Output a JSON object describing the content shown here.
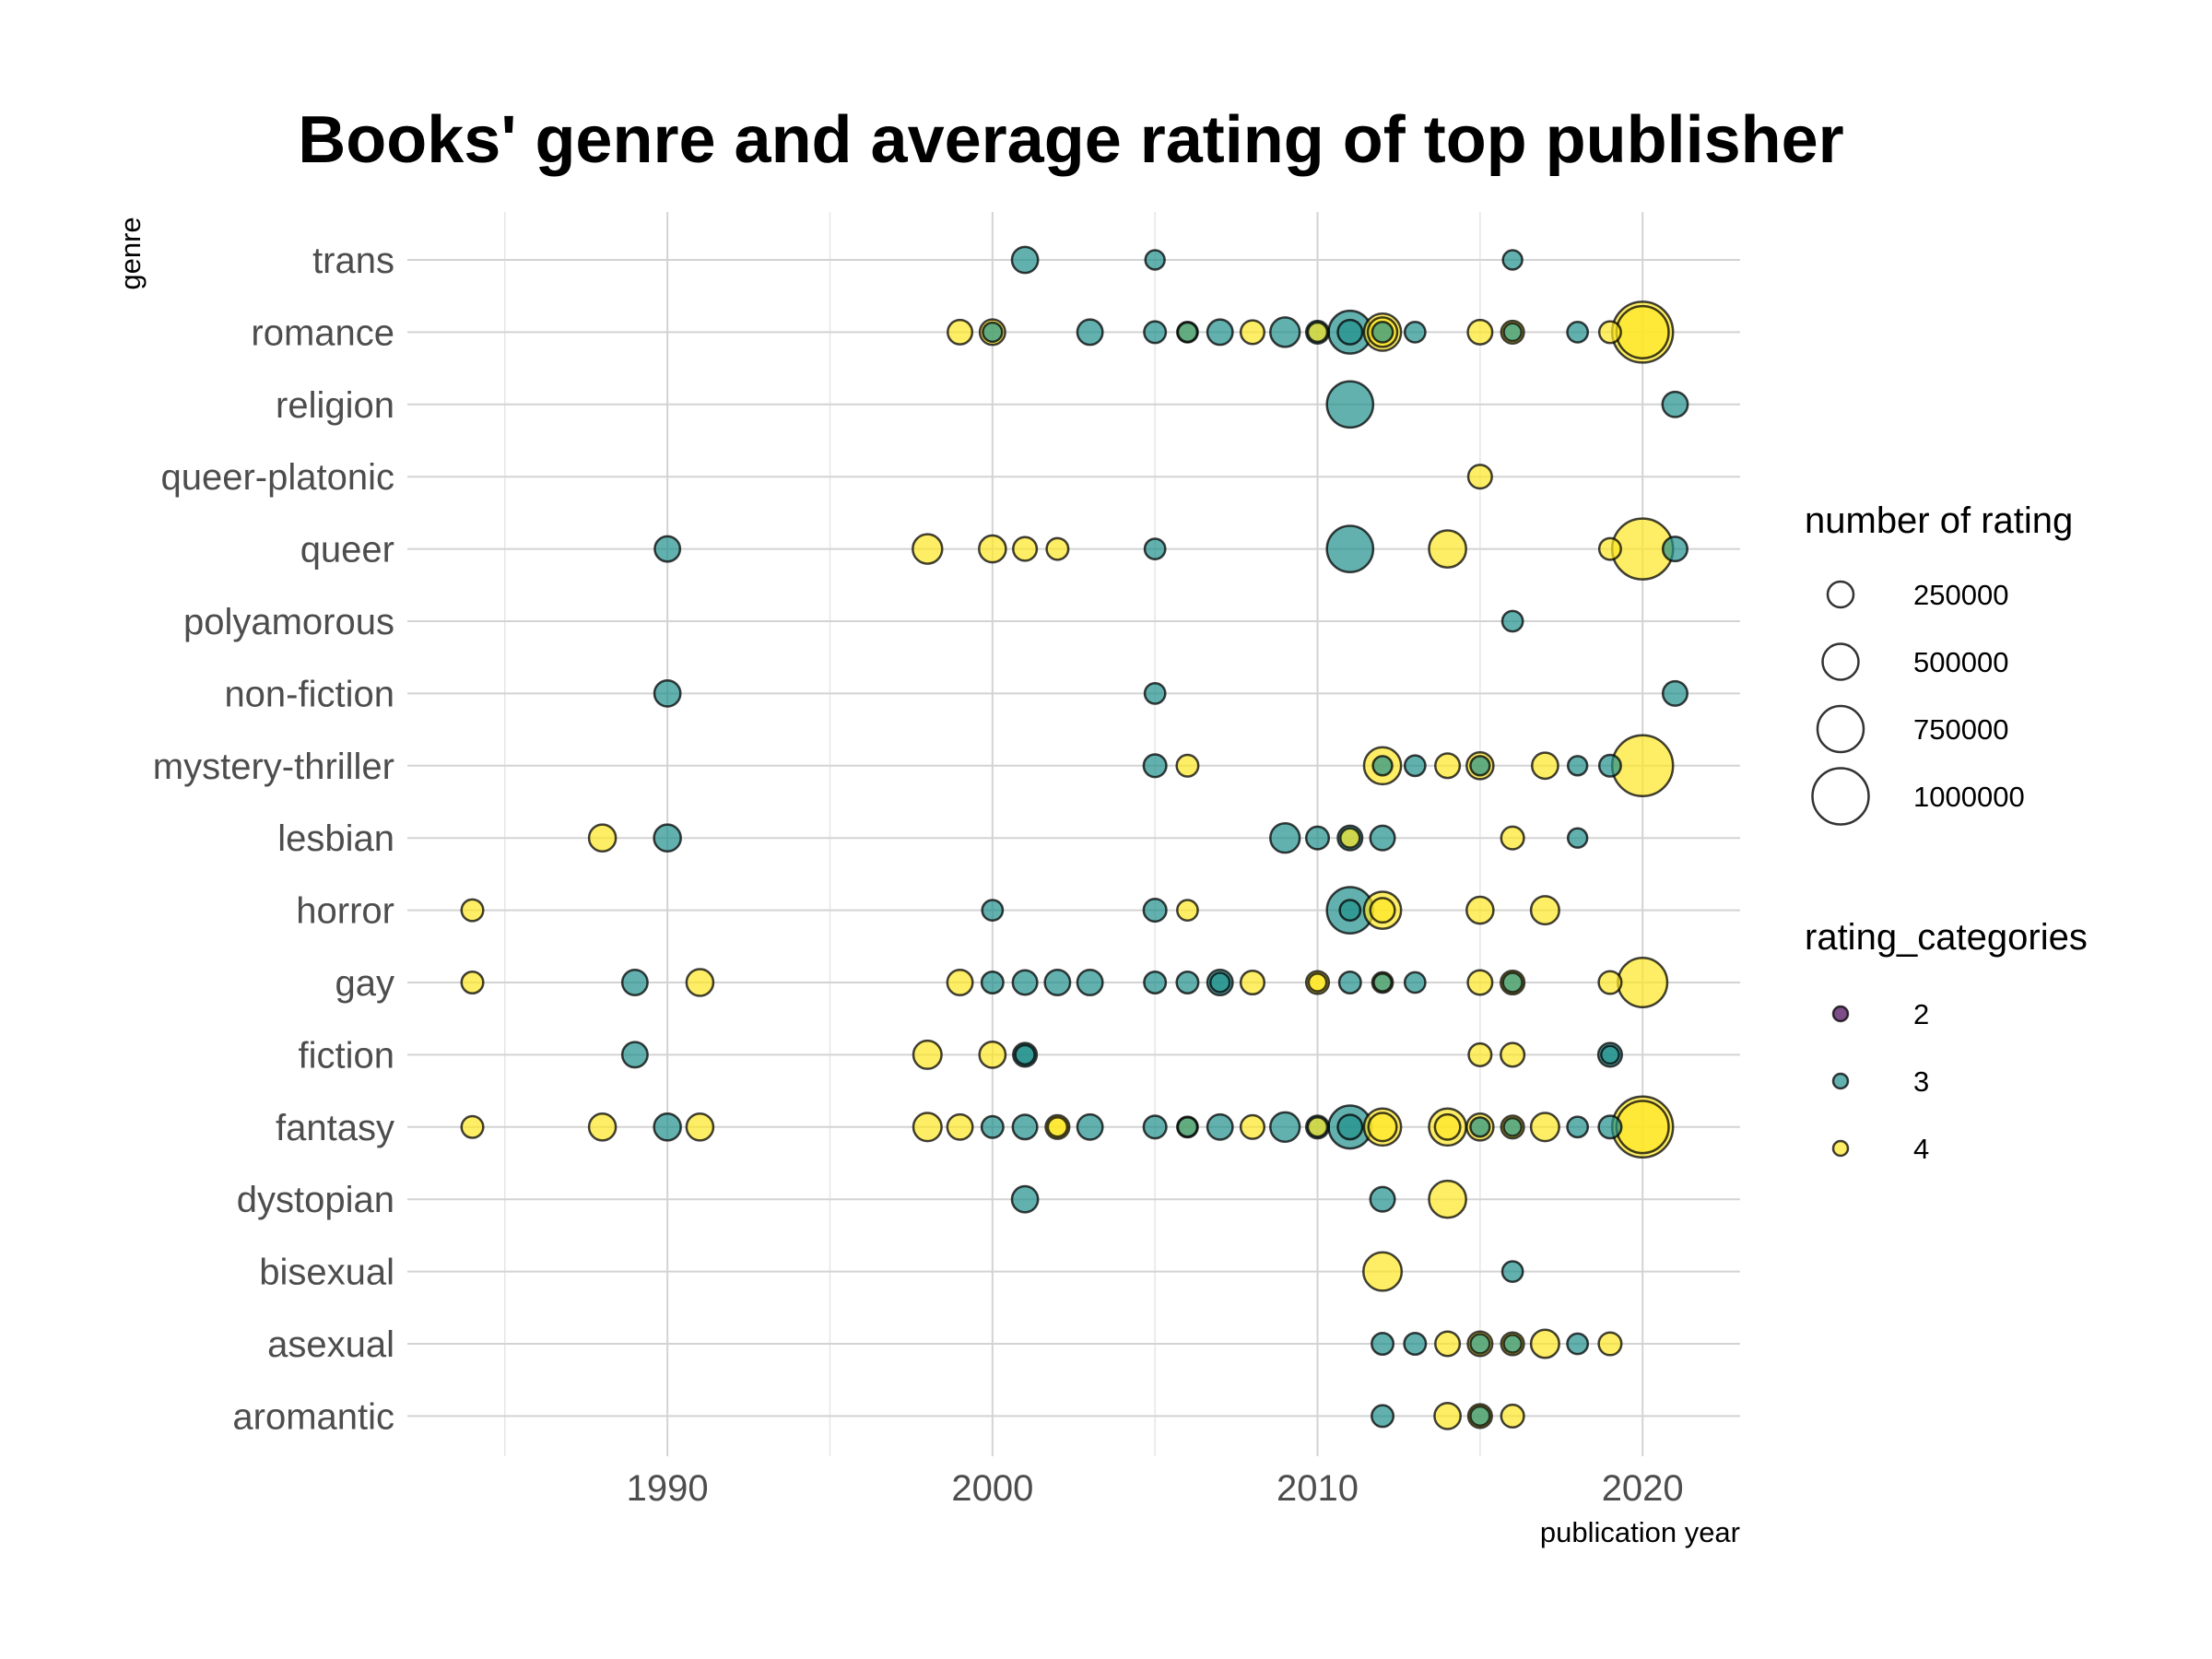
{
  "chart_data": {
    "type": "scatter",
    "title": "Books' genre and average rating of top publisher",
    "xlabel": "publication year",
    "ylabel": "genre",
    "xlim": [
      1982,
      2023
    ],
    "x_ticks": [
      1990,
      2000,
      2010,
      2020
    ],
    "grid": true,
    "categories": [
      "aromantic",
      "asexual",
      "bisexual",
      "dystopian",
      "fantasy",
      "fiction",
      "gay",
      "horror",
      "lesbian",
      "mystery-thriller",
      "non-fiction",
      "polyamorous",
      "queer",
      "queer-platonic",
      "religion",
      "romance",
      "trans"
    ],
    "colors": {
      "2": "#440154",
      "3": "#21908C",
      "4": "#FDE725"
    },
    "legends": {
      "size": {
        "title": "number of rating",
        "values": [
          250000,
          500000,
          750000,
          1000000
        ],
        "labels": [
          "250000",
          "500000",
          "750000",
          "1000000"
        ]
      },
      "color": {
        "title": "rating_categories",
        "values": [
          "2",
          "3",
          "4"
        ]
      }
    },
    "points": [
      {
        "genre": "trans",
        "year": 2001,
        "cat": "3",
        "n": 100000
      },
      {
        "genre": "trans",
        "year": 2005,
        "cat": "3",
        "n": 30000
      },
      {
        "genre": "trans",
        "year": 2016,
        "cat": "3",
        "n": 30000
      },
      {
        "genre": "romance",
        "year": 1999,
        "cat": "4",
        "n": 80000
      },
      {
        "genre": "romance",
        "year": 2000,
        "cat": "4",
        "n": 90000
      },
      {
        "genre": "romance",
        "year": 2000,
        "cat": "3",
        "n": 30000
      },
      {
        "genre": "romance",
        "year": 2003,
        "cat": "3",
        "n": 90000
      },
      {
        "genre": "romance",
        "year": 2005,
        "cat": "3",
        "n": 50000
      },
      {
        "genre": "romance",
        "year": 2006,
        "cat": "4",
        "n": 40000
      },
      {
        "genre": "romance",
        "year": 2006,
        "cat": "3",
        "n": 30000
      },
      {
        "genre": "romance",
        "year": 2007,
        "cat": "3",
        "n": 90000
      },
      {
        "genre": "romance",
        "year": 2008,
        "cat": "4",
        "n": 70000
      },
      {
        "genre": "romance",
        "year": 2009,
        "cat": "3",
        "n": 150000
      },
      {
        "genre": "romance",
        "year": 2010,
        "cat": "3",
        "n": 60000
      },
      {
        "genre": "romance",
        "year": 2010,
        "cat": "4",
        "n": 30000
      },
      {
        "genre": "romance",
        "year": 2011,
        "cat": "3",
        "n": 450000
      },
      {
        "genre": "romance",
        "year": 2011,
        "cat": "3",
        "n": 80000
      },
      {
        "genre": "romance",
        "year": 2012,
        "cat": "4",
        "n": 300000
      },
      {
        "genre": "romance",
        "year": 2012,
        "cat": "4",
        "n": 150000
      },
      {
        "genre": "romance",
        "year": 2012,
        "cat": "3",
        "n": 40000
      },
      {
        "genre": "romance",
        "year": 2013,
        "cat": "3",
        "n": 40000
      },
      {
        "genre": "romance",
        "year": 2015,
        "cat": "4",
        "n": 80000
      },
      {
        "genre": "romance",
        "year": 2016,
        "cat": "4",
        "n": 60000
      },
      {
        "genre": "romance",
        "year": 2016,
        "cat": "3",
        "n": 20000
      },
      {
        "genre": "romance",
        "year": 2018,
        "cat": "3",
        "n": 40000
      },
      {
        "genre": "romance",
        "year": 2019,
        "cat": "4",
        "n": 50000
      },
      {
        "genre": "romance",
        "year": 2020,
        "cat": "4",
        "n": 1100000
      },
      {
        "genre": "romance",
        "year": 2020,
        "cat": "4",
        "n": 750000
      },
      {
        "genre": "religion",
        "year": 2011,
        "cat": "3",
        "n": 550000
      },
      {
        "genre": "religion",
        "year": 2021,
        "cat": "3",
        "n": 90000
      },
      {
        "genre": "queer-platonic",
        "year": 2015,
        "cat": "4",
        "n": 70000
      },
      {
        "genre": "queer",
        "year": 1990,
        "cat": "3",
        "n": 90000
      },
      {
        "genre": "queer",
        "year": 1998,
        "cat": "4",
        "n": 150000
      },
      {
        "genre": "queer",
        "year": 2000,
        "cat": "4",
        "n": 110000
      },
      {
        "genre": "queer",
        "year": 2001,
        "cat": "4",
        "n": 70000
      },
      {
        "genre": "queer",
        "year": 2002,
        "cat": "4",
        "n": 50000
      },
      {
        "genre": "queer",
        "year": 2005,
        "cat": "3",
        "n": 40000
      },
      {
        "genre": "queer",
        "year": 2011,
        "cat": "3",
        "n": 550000
      },
      {
        "genre": "queer",
        "year": 2014,
        "cat": "4",
        "n": 300000
      },
      {
        "genre": "queer",
        "year": 2019,
        "cat": "4",
        "n": 50000
      },
      {
        "genre": "queer",
        "year": 2020,
        "cat": "4",
        "n": 1100000
      },
      {
        "genre": "queer",
        "year": 2021,
        "cat": "3",
        "n": 80000
      },
      {
        "genre": "polyamorous",
        "year": 2016,
        "cat": "3",
        "n": 40000
      },
      {
        "genre": "non-fiction",
        "year": 1990,
        "cat": "3",
        "n": 100000
      },
      {
        "genre": "non-fiction",
        "year": 2005,
        "cat": "3",
        "n": 40000
      },
      {
        "genre": "non-fiction",
        "year": 2021,
        "cat": "3",
        "n": 80000
      },
      {
        "genre": "mystery-thriller",
        "year": 2005,
        "cat": "3",
        "n": 60000
      },
      {
        "genre": "mystery-thriller",
        "year": 2006,
        "cat": "4",
        "n": 50000
      },
      {
        "genre": "mystery-thriller",
        "year": 2012,
        "cat": "4",
        "n": 300000
      },
      {
        "genre": "mystery-thriller",
        "year": 2012,
        "cat": "3",
        "n": 30000
      },
      {
        "genre": "mystery-thriller",
        "year": 2013,
        "cat": "3",
        "n": 40000
      },
      {
        "genre": "mystery-thriller",
        "year": 2014,
        "cat": "4",
        "n": 80000
      },
      {
        "genre": "mystery-thriller",
        "year": 2015,
        "cat": "4",
        "n": 110000
      },
      {
        "genre": "mystery-thriller",
        "year": 2015,
        "cat": "3",
        "n": 30000
      },
      {
        "genre": "mystery-thriller",
        "year": 2017,
        "cat": "4",
        "n": 100000
      },
      {
        "genre": "mystery-thriller",
        "year": 2018,
        "cat": "3",
        "n": 30000
      },
      {
        "genre": "mystery-thriller",
        "year": 2019,
        "cat": "3",
        "n": 50000
      },
      {
        "genre": "mystery-thriller",
        "year": 2020,
        "cat": "4",
        "n": 1100000
      },
      {
        "genre": "lesbian",
        "year": 1988,
        "cat": "4",
        "n": 110000
      },
      {
        "genre": "lesbian",
        "year": 1990,
        "cat": "3",
        "n": 110000
      },
      {
        "genre": "lesbian",
        "year": 2009,
        "cat": "3",
        "n": 150000
      },
      {
        "genre": "lesbian",
        "year": 2010,
        "cat": "3",
        "n": 60000
      },
      {
        "genre": "lesbian",
        "year": 2011,
        "cat": "3",
        "n": 80000
      },
      {
        "genre": "lesbian",
        "year": 2011,
        "cat": "4",
        "n": 30000
      },
      {
        "genre": "lesbian",
        "year": 2012,
        "cat": "3",
        "n": 80000
      },
      {
        "genre": "lesbian",
        "year": 2016,
        "cat": "4",
        "n": 60000
      },
      {
        "genre": "lesbian",
        "year": 2018,
        "cat": "3",
        "n": 30000
      },
      {
        "genre": "horror",
        "year": 1984,
        "cat": "4",
        "n": 50000
      },
      {
        "genre": "horror",
        "year": 2000,
        "cat": "3",
        "n": 40000
      },
      {
        "genre": "horror",
        "year": 2005,
        "cat": "3",
        "n": 60000
      },
      {
        "genre": "horror",
        "year": 2006,
        "cat": "4",
        "n": 40000
      },
      {
        "genre": "horror",
        "year": 2011,
        "cat": "3",
        "n": 550000
      },
      {
        "genre": "horror",
        "year": 2011,
        "cat": "3",
        "n": 40000
      },
      {
        "genre": "horror",
        "year": 2012,
        "cat": "4",
        "n": 300000
      },
      {
        "genre": "horror",
        "year": 2012,
        "cat": "4",
        "n": 80000
      },
      {
        "genre": "horror",
        "year": 2015,
        "cat": "4",
        "n": 110000
      },
      {
        "genre": "horror",
        "year": 2017,
        "cat": "4",
        "n": 130000
      },
      {
        "genre": "gay",
        "year": 1984,
        "cat": "4",
        "n": 50000
      },
      {
        "genre": "gay",
        "year": 1989,
        "cat": "3",
        "n": 90000
      },
      {
        "genre": "gay",
        "year": 1991,
        "cat": "4",
        "n": 110000
      },
      {
        "genre": "gay",
        "year": 1999,
        "cat": "4",
        "n": 90000
      },
      {
        "genre": "gay",
        "year": 2000,
        "cat": "3",
        "n": 50000
      },
      {
        "genre": "gay",
        "year": 2001,
        "cat": "3",
        "n": 80000
      },
      {
        "genre": "gay",
        "year": 2002,
        "cat": "3",
        "n": 90000
      },
      {
        "genre": "gay",
        "year": 2003,
        "cat": "3",
        "n": 90000
      },
      {
        "genre": "gay",
        "year": 2005,
        "cat": "3",
        "n": 50000
      },
      {
        "genre": "gay",
        "year": 2006,
        "cat": "3",
        "n": 50000
      },
      {
        "genre": "gay",
        "year": 2007,
        "cat": "3",
        "n": 90000
      },
      {
        "genre": "gay",
        "year": 2007,
        "cat": "3",
        "n": 30000
      },
      {
        "genre": "gay",
        "year": 2008,
        "cat": "4",
        "n": 70000
      },
      {
        "genre": "gay",
        "year": 2010,
        "cat": "4",
        "n": 60000
      },
      {
        "genre": "gay",
        "year": 2010,
        "cat": "4",
        "n": 20000
      },
      {
        "genre": "gay",
        "year": 2011,
        "cat": "3",
        "n": 50000
      },
      {
        "genre": "gay",
        "year": 2012,
        "cat": "4",
        "n": 40000
      },
      {
        "genre": "gay",
        "year": 2012,
        "cat": "3",
        "n": 20000
      },
      {
        "genre": "gay",
        "year": 2013,
        "cat": "3",
        "n": 40000
      },
      {
        "genre": "gay",
        "year": 2015,
        "cat": "4",
        "n": 80000
      },
      {
        "genre": "gay",
        "year": 2016,
        "cat": "4",
        "n": 70000
      },
      {
        "genre": "gay",
        "year": 2016,
        "cat": "3",
        "n": 30000
      },
      {
        "genre": "gay",
        "year": 2019,
        "cat": "4",
        "n": 60000
      },
      {
        "genre": "gay",
        "year": 2020,
        "cat": "4",
        "n": 650000
      },
      {
        "genre": "fiction",
        "year": 1989,
        "cat": "3",
        "n": 90000
      },
      {
        "genre": "fiction",
        "year": 1998,
        "cat": "4",
        "n": 130000
      },
      {
        "genre": "fiction",
        "year": 2000,
        "cat": "4",
        "n": 100000
      },
      {
        "genre": "fiction",
        "year": 2001,
        "cat": "3",
        "n": 70000
      },
      {
        "genre": "fiction",
        "year": 2001,
        "cat": "3",
        "n": 30000
      },
      {
        "genre": "fiction",
        "year": 2015,
        "cat": "4",
        "n": 60000
      },
      {
        "genre": "fiction",
        "year": 2016,
        "cat": "4",
        "n": 70000
      },
      {
        "genre": "fiction",
        "year": 2019,
        "cat": "3",
        "n": 70000
      },
      {
        "genre": "fiction",
        "year": 2019,
        "cat": "3",
        "n": 20000
      },
      {
        "genre": "fantasy",
        "year": 1984,
        "cat": "4",
        "n": 50000
      },
      {
        "genre": "fantasy",
        "year": 1988,
        "cat": "4",
        "n": 110000
      },
      {
        "genre": "fantasy",
        "year": 1990,
        "cat": "3",
        "n": 110000
      },
      {
        "genre": "fantasy",
        "year": 1991,
        "cat": "4",
        "n": 110000
      },
      {
        "genre": "fantasy",
        "year": 1998,
        "cat": "4",
        "n": 130000
      },
      {
        "genre": "fantasy",
        "year": 1999,
        "cat": "4",
        "n": 90000
      },
      {
        "genre": "fantasy",
        "year": 2000,
        "cat": "3",
        "n": 50000
      },
      {
        "genre": "fantasy",
        "year": 2001,
        "cat": "3",
        "n": 80000
      },
      {
        "genre": "fantasy",
        "year": 2002,
        "cat": "4",
        "n": 70000
      },
      {
        "genre": "fantasy",
        "year": 2002,
        "cat": "4",
        "n": 30000
      },
      {
        "genre": "fantasy",
        "year": 2003,
        "cat": "3",
        "n": 90000
      },
      {
        "genre": "fantasy",
        "year": 2005,
        "cat": "3",
        "n": 60000
      },
      {
        "genre": "fantasy",
        "year": 2006,
        "cat": "4",
        "n": 40000
      },
      {
        "genre": "fantasy",
        "year": 2006,
        "cat": "3",
        "n": 30000
      },
      {
        "genre": "fantasy",
        "year": 2007,
        "cat": "3",
        "n": 90000
      },
      {
        "genre": "fantasy",
        "year": 2008,
        "cat": "4",
        "n": 70000
      },
      {
        "genre": "fantasy",
        "year": 2009,
        "cat": "3",
        "n": 150000
      },
      {
        "genre": "fantasy",
        "year": 2010,
        "cat": "3",
        "n": 60000
      },
      {
        "genre": "fantasy",
        "year": 2010,
        "cat": "4",
        "n": 30000
      },
      {
        "genre": "fantasy",
        "year": 2011,
        "cat": "3",
        "n": 450000
      },
      {
        "genre": "fantasy",
        "year": 2011,
        "cat": "3",
        "n": 80000
      },
      {
        "genre": "fantasy",
        "year": 2012,
        "cat": "4",
        "n": 300000
      },
      {
        "genre": "fantasy",
        "year": 2012,
        "cat": "4",
        "n": 130000
      },
      {
        "genre": "fantasy",
        "year": 2014,
        "cat": "4",
        "n": 300000
      },
      {
        "genre": "fantasy",
        "year": 2014,
        "cat": "4",
        "n": 90000
      },
      {
        "genre": "fantasy",
        "year": 2015,
        "cat": "4",
        "n": 110000
      },
      {
        "genre": "fantasy",
        "year": 2015,
        "cat": "3",
        "n": 30000
      },
      {
        "genre": "fantasy",
        "year": 2016,
        "cat": "4",
        "n": 60000
      },
      {
        "genre": "fantasy",
        "year": 2016,
        "cat": "3",
        "n": 20000
      },
      {
        "genre": "fantasy",
        "year": 2017,
        "cat": "4",
        "n": 130000
      },
      {
        "genre": "fantasy",
        "year": 2018,
        "cat": "3",
        "n": 40000
      },
      {
        "genre": "fantasy",
        "year": 2019,
        "cat": "3",
        "n": 60000
      },
      {
        "genre": "fantasy",
        "year": 2020,
        "cat": "4",
        "n": 1100000
      },
      {
        "genre": "fantasy",
        "year": 2020,
        "cat": "4",
        "n": 750000
      },
      {
        "genre": "dystopian",
        "year": 2001,
        "cat": "3",
        "n": 100000
      },
      {
        "genre": "dystopian",
        "year": 2012,
        "cat": "3",
        "n": 80000
      },
      {
        "genre": "dystopian",
        "year": 2014,
        "cat": "4",
        "n": 300000
      },
      {
        "genre": "bisexual",
        "year": 2012,
        "cat": "4",
        "n": 330000
      },
      {
        "genre": "bisexual",
        "year": 2016,
        "cat": "3",
        "n": 40000
      },
      {
        "genre": "asexual",
        "year": 2012,
        "cat": "3",
        "n": 50000
      },
      {
        "genre": "asexual",
        "year": 2013,
        "cat": "3",
        "n": 50000
      },
      {
        "genre": "asexual",
        "year": 2014,
        "cat": "4",
        "n": 80000
      },
      {
        "genre": "asexual",
        "year": 2015,
        "cat": "4",
        "n": 80000
      },
      {
        "genre": "asexual",
        "year": 2015,
        "cat": "3",
        "n": 30000
      },
      {
        "genre": "asexual",
        "year": 2016,
        "cat": "4",
        "n": 60000
      },
      {
        "genre": "asexual",
        "year": 2016,
        "cat": "3",
        "n": 20000
      },
      {
        "genre": "asexual",
        "year": 2017,
        "cat": "4",
        "n": 130000
      },
      {
        "genre": "asexual",
        "year": 2018,
        "cat": "3",
        "n": 40000
      },
      {
        "genre": "asexual",
        "year": 2019,
        "cat": "4",
        "n": 60000
      },
      {
        "genre": "aromantic",
        "year": 2012,
        "cat": "3",
        "n": 50000
      },
      {
        "genre": "aromantic",
        "year": 2014,
        "cat": "4",
        "n": 100000
      },
      {
        "genre": "aromantic",
        "year": 2015,
        "cat": "4",
        "n": 70000
      },
      {
        "genre": "aromantic",
        "year": 2015,
        "cat": "3",
        "n": 30000
      },
      {
        "genre": "aromantic",
        "year": 2016,
        "cat": "4",
        "n": 60000
      }
    ]
  }
}
